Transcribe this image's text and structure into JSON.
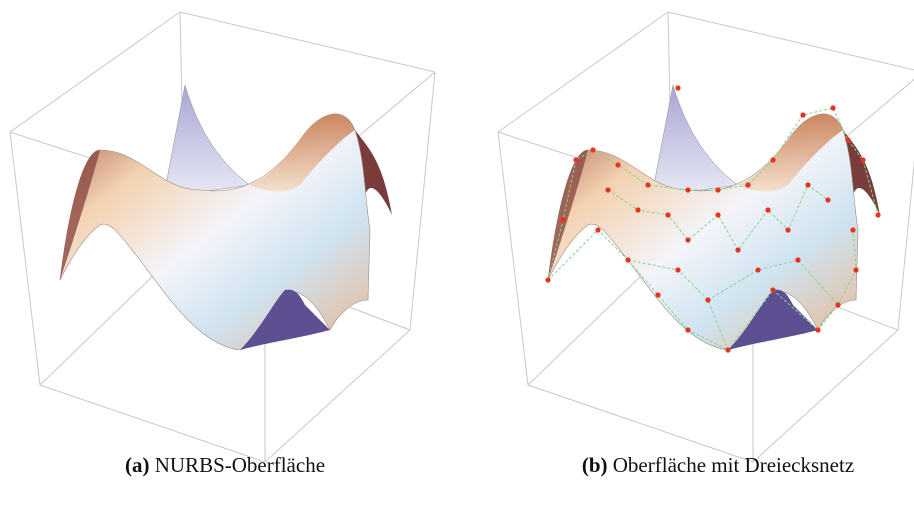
{
  "figures": [
    {
      "label": "(a)",
      "caption": "NURBS-Oberfläche"
    },
    {
      "label": "(b)",
      "caption": "Oberfläche mit Dreiecksnetz"
    }
  ]
}
